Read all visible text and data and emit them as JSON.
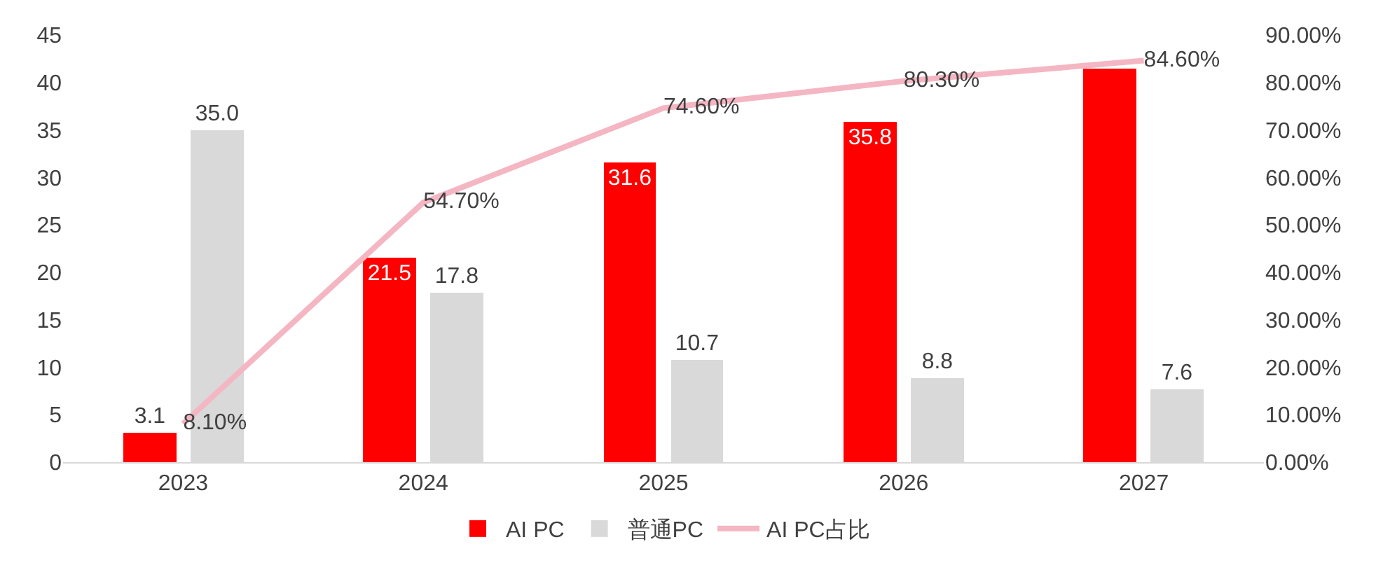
{
  "chart_data": {
    "type": "bar",
    "categories": [
      "2023",
      "2024",
      "2025",
      "2026",
      "2027"
    ],
    "series": [
      {
        "name": "AI PC",
        "color": "#ff0000",
        "values": [
          3.1,
          21.5,
          31.6,
          35.8,
          41.5
        ],
        "value_labels": [
          "3.1",
          "21.5",
          "31.6",
          "35.8",
          null
        ]
      },
      {
        "name": "普通PC",
        "color": "#d9d9d9",
        "values": [
          35.0,
          17.8,
          10.7,
          8.8,
          7.6
        ],
        "value_labels": [
          "35.0",
          "17.8",
          "10.7",
          "8.8",
          "7.6"
        ]
      },
      {
        "name": "AI PC占比",
        "type": "line",
        "axis": "y2",
        "color": "#f4b6c2",
        "marker": "none",
        "values": [
          8.1,
          54.7,
          74.6,
          80.3,
          84.6
        ],
        "value_labels": [
          "8.10%",
          "54.70%",
          "74.60%",
          "80.30%",
          "84.60%"
        ]
      }
    ],
    "ylim": [
      0,
      45
    ],
    "yticks": [
      0,
      5,
      10,
      15,
      20,
      25,
      30,
      35,
      40,
      45
    ],
    "y2lim": [
      0,
      90
    ],
    "y2ticks": [
      {
        "value": 0,
        "label": "0.00%"
      },
      {
        "value": 10,
        "label": "10.00%"
      },
      {
        "value": 20,
        "label": "20.00%"
      },
      {
        "value": 30,
        "label": "30.00%"
      },
      {
        "value": 40,
        "label": "40.00%"
      },
      {
        "value": 50,
        "label": "50.00%"
      },
      {
        "value": 60,
        "label": "60.00%"
      },
      {
        "value": 70,
        "label": "70.00%"
      },
      {
        "value": 80,
        "label": "80.00%"
      },
      {
        "value": 90,
        "label": "90.00%"
      }
    ],
    "grid": false,
    "legend": "bottom"
  }
}
